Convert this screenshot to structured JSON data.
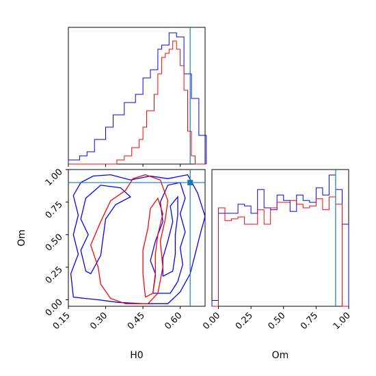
{
  "chart_data": {
    "type": "corner",
    "parameters": [
      "H0",
      "Om"
    ],
    "truth": {
      "H0": 0.64,
      "Om": 0.9
    },
    "colors": {
      "series_a": "#0000ff",
      "series_b": "#ff0000",
      "truth": "#1f77b4"
    },
    "panels": {
      "h0_hist": {
        "type": "histogram",
        "xlim": [
          0.15,
          0.7
        ],
        "bin_edges": [
          0.15,
          0.165,
          0.18,
          0.195,
          0.21,
          0.225,
          0.24,
          0.255,
          0.27,
          0.285,
          0.3,
          0.315,
          0.33,
          0.345,
          0.36,
          0.375,
          0.39,
          0.405,
          0.42,
          0.435,
          0.45,
          0.465,
          0.48,
          0.495,
          0.51,
          0.525,
          0.54,
          0.555,
          0.57,
          0.585,
          0.6,
          0.615,
          0.63,
          0.645,
          0.66,
          0.675,
          0.69,
          0.705
        ],
        "series": [
          {
            "color": "blue",
            "counts": [
              1,
              1,
              1,
              2,
              2,
              3,
              3,
              6,
              6,
              6,
              9,
              9,
              12,
              12,
              12,
              15,
              15,
              15,
              17,
              17,
              21,
              21,
              23,
              23,
              28,
              29,
              29,
              32,
              32,
              31,
              31,
              22,
              22,
              16,
              16,
              7,
              7
            ]
          },
          {
            "color": "red",
            "counts": [
              0,
              0,
              0,
              0,
              0,
              0,
              0,
              0,
              0,
              0,
              0,
              0,
              0,
              1,
              1,
              2,
              2,
              4,
              4,
              6,
              9,
              13,
              13,
              17,
              22,
              26,
              27,
              28,
              30,
              28,
              24,
              18,
              8,
              2,
              0,
              0,
              0
            ]
          }
        ]
      },
      "om_hist": {
        "type": "histogram",
        "xlim": [
          -0.05,
          1.0
        ],
        "bin_edges": [
          -0.05,
          0.0,
          0.05,
          0.1,
          0.15,
          0.2,
          0.25,
          0.3,
          0.35,
          0.4,
          0.45,
          0.5,
          0.55,
          0.6,
          0.65,
          0.7,
          0.75,
          0.8,
          0.85,
          0.9,
          0.95,
          1.0
        ],
        "series": [
          {
            "color": "blue",
            "counts": [
              1.6,
              25.5,
              25.5,
              25.5,
              28.0,
              27.5,
              25.5,
              32.0,
              27.0,
              26.5,
              30.5,
              29.0,
              26.0,
              30.5,
              29.0,
              28.5,
              32.5,
              30.5,
              36.0,
              32.0,
              22.5
            ]
          },
          {
            "color": "red",
            "counts": [
              0,
              27.0,
              23.5,
              24.0,
              24.5,
              22.5,
              22.5,
              26.5,
              22.5,
              27.0,
              28.5,
              28.5,
              29.0,
              28.0,
              27.0,
              27.5,
              29.5,
              26.5,
              30.0,
              28.0,
              0
            ]
          }
        ]
      },
      "scatter_2d": {
        "type": "contour",
        "xlim": [
          0.15,
          0.7
        ],
        "ylim": [
          -0.05,
          1.0
        ],
        "contours": [
          {
            "color": "blue",
            "points": [
              [
                0.17,
                0.02
              ],
              [
                0.27,
                0.0
              ],
              [
                0.35,
                -0.02
              ],
              [
                0.45,
                -0.03
              ],
              [
                0.55,
                -0.03
              ],
              [
                0.6,
                0.06
              ],
              [
                0.64,
                0.2
              ],
              [
                0.66,
                0.35
              ],
              [
                0.68,
                0.5
              ],
              [
                0.7,
                0.64
              ],
              [
                0.67,
                0.82
              ],
              [
                0.63,
                0.96
              ],
              [
                0.55,
                0.93
              ],
              [
                0.48,
                0.95
              ],
              [
                0.4,
                0.92
              ],
              [
                0.32,
                0.96
              ],
              [
                0.25,
                0.95
              ],
              [
                0.2,
                0.9
              ],
              [
                0.17,
                0.8
              ],
              [
                0.19,
                0.65
              ],
              [
                0.17,
                0.5
              ],
              [
                0.19,
                0.35
              ],
              [
                0.16,
                0.2
              ],
              [
                0.17,
                0.02
              ]
            ]
          },
          {
            "color": "blue",
            "points": [
              [
                0.22,
                0.22
              ],
              [
                0.2,
                0.38
              ],
              [
                0.23,
                0.5
              ],
              [
                0.2,
                0.62
              ],
              [
                0.22,
                0.78
              ],
              [
                0.28,
                0.88
              ],
              [
                0.36,
                0.86
              ],
              [
                0.4,
                0.79
              ],
              [
                0.34,
                0.73
              ],
              [
                0.3,
                0.62
              ],
              [
                0.29,
                0.48
              ],
              [
                0.28,
                0.34
              ],
              [
                0.24,
                0.2
              ],
              [
                0.22,
                0.22
              ]
            ]
          },
          {
            "color": "blue",
            "points": [
              [
                0.49,
                0.05
              ],
              [
                0.5,
                0.2
              ],
              [
                0.48,
                0.3
              ],
              [
                0.5,
                0.45
              ],
              [
                0.53,
                0.6
              ],
              [
                0.52,
                0.75
              ],
              [
                0.55,
                0.88
              ],
              [
                0.6,
                0.9
              ],
              [
                0.62,
                0.78
              ],
              [
                0.6,
                0.66
              ],
              [
                0.62,
                0.52
              ],
              [
                0.6,
                0.4
              ],
              [
                0.61,
                0.27
              ],
              [
                0.59,
                0.14
              ],
              [
                0.56,
                0.05
              ],
              [
                0.49,
                0.05
              ]
            ]
          },
          {
            "color": "blue",
            "points": [
              [
                0.53,
                0.18
              ],
              [
                0.53,
                0.32
              ],
              [
                0.55,
                0.45
              ],
              [
                0.57,
                0.6
              ],
              [
                0.56,
                0.72
              ],
              [
                0.59,
                0.79
              ],
              [
                0.59,
                0.65
              ],
              [
                0.58,
                0.5
              ],
              [
                0.58,
                0.35
              ],
              [
                0.57,
                0.22
              ],
              [
                0.53,
                0.18
              ]
            ]
          },
          {
            "color": "red",
            "points": [
              [
                0.28,
                0.12
              ],
              [
                0.32,
                0.01
              ],
              [
                0.38,
                -0.03
              ],
              [
                0.47,
                -0.03
              ],
              [
                0.51,
                0.05
              ],
              [
                0.53,
                0.25
              ],
              [
                0.52,
                0.45
              ],
              [
                0.54,
                0.62
              ],
              [
                0.55,
                0.76
              ],
              [
                0.52,
                0.92
              ],
              [
                0.46,
                0.96
              ],
              [
                0.41,
                0.93
              ],
              [
                0.38,
                0.84
              ],
              [
                0.32,
                0.76
              ],
              [
                0.28,
                0.6
              ],
              [
                0.24,
                0.42
              ],
              [
                0.27,
                0.25
              ],
              [
                0.28,
                0.12
              ]
            ]
          },
          {
            "color": "red",
            "points": [
              [
                0.46,
                0.02
              ],
              [
                0.45,
                0.2
              ],
              [
                0.45,
                0.38
              ],
              [
                0.47,
                0.55
              ],
              [
                0.48,
                0.7
              ],
              [
                0.51,
                0.78
              ],
              [
                0.53,
                0.66
              ],
              [
                0.51,
                0.5
              ],
              [
                0.5,
                0.35
              ],
              [
                0.5,
                0.18
              ],
              [
                0.49,
                0.05
              ],
              [
                0.46,
                0.02
              ]
            ]
          }
        ]
      }
    },
    "axis_labels": {
      "x_h0": "H0",
      "x_om": "Om",
      "y_om": "Om"
    },
    "ticks": {
      "h0": [
        "0.15",
        "0.30",
        "0.45",
        "0.60"
      ],
      "om": [
        "0.00",
        "0.25",
        "0.50",
        "0.75",
        "1.00"
      ]
    },
    "grid": false,
    "legend": "none"
  }
}
